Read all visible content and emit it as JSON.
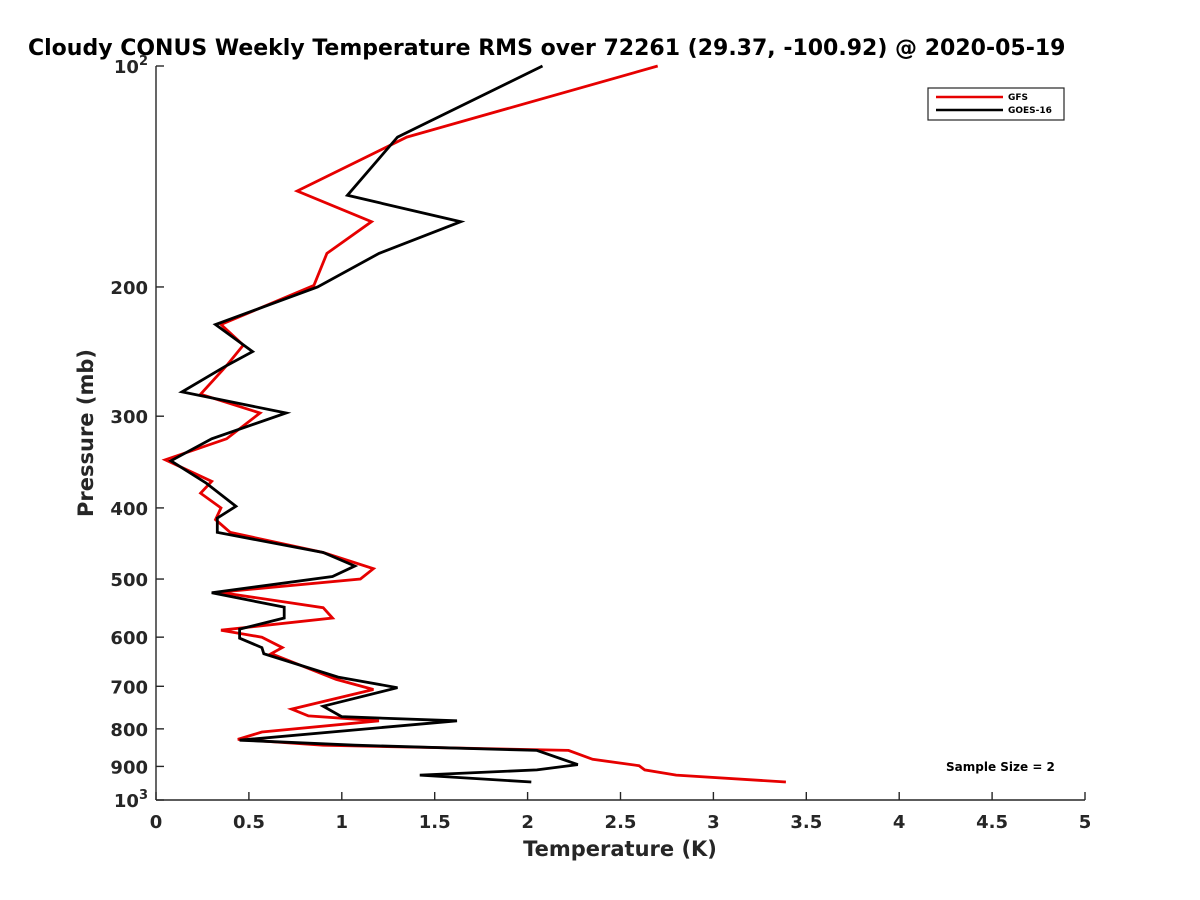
{
  "chart_data": {
    "type": "line",
    "title": "Cloudy CONUS Weekly Temperature RMS over 72261 (29.37, -100.92) @ 2020-05-19",
    "xlabel": "Temperature (K)",
    "ylabel": "Pressure (mb)",
    "xlim": [
      0,
      5
    ],
    "ylim": [
      100,
      1000
    ],
    "y_scale": "log",
    "y_reversed": true,
    "grid": false,
    "legend_position": "top-right",
    "x_ticks": [
      "0",
      "0.5",
      "1",
      "1.5",
      "2",
      "2.5",
      "3",
      "3.5",
      "4",
      "4.5",
      "5"
    ],
    "y_ticks": [
      {
        "value": 100,
        "base": "10",
        "exp": "2"
      },
      {
        "value": 200,
        "label": "200"
      },
      {
        "value": 300,
        "label": "300"
      },
      {
        "value": 400,
        "label": "400"
      },
      {
        "value": 500,
        "label": "500"
      },
      {
        "value": 600,
        "label": "600"
      },
      {
        "value": 700,
        "label": "700"
      },
      {
        "value": 800,
        "label": "800"
      },
      {
        "value": 900,
        "label": "900"
      },
      {
        "value": 1000,
        "base": "10",
        "exp": "3"
      }
    ],
    "annotation": "Sample Size = 2",
    "series": [
      {
        "name": "GFS",
        "color": "#e60000",
        "points": [
          [
            2.7,
            100
          ],
          [
            1.35,
            125
          ],
          [
            0.76,
            148
          ],
          [
            1.16,
            163
          ],
          [
            0.92,
            180
          ],
          [
            0.85,
            199
          ],
          [
            0.35,
            225
          ],
          [
            0.47,
            240
          ],
          [
            0.38,
            256
          ],
          [
            0.24,
            280
          ],
          [
            0.56,
            297
          ],
          [
            0.38,
            322
          ],
          [
            0.05,
            344
          ],
          [
            0.3,
            368
          ],
          [
            0.24,
            382
          ],
          [
            0.35,
            400
          ],
          [
            0.32,
            415
          ],
          [
            0.4,
            432
          ],
          [
            0.9,
            460
          ],
          [
            1.17,
            484
          ],
          [
            1.1,
            500
          ],
          [
            0.34,
            521
          ],
          [
            0.9,
            547
          ],
          [
            0.95,
            565
          ],
          [
            0.35,
            587
          ],
          [
            0.57,
            600
          ],
          [
            0.68,
            620
          ],
          [
            0.62,
            632
          ],
          [
            0.97,
            685
          ],
          [
            1.17,
            707
          ],
          [
            0.73,
            752
          ],
          [
            0.82,
            768
          ],
          [
            1.2,
            780
          ],
          [
            0.57,
            808
          ],
          [
            0.44,
            827
          ],
          [
            0.9,
            842
          ],
          [
            2.22,
            856
          ],
          [
            2.35,
            880
          ],
          [
            2.6,
            898
          ],
          [
            2.63,
            910
          ],
          [
            2.8,
            925
          ],
          [
            3.39,
            945
          ]
        ]
      },
      {
        "name": "GOES-16",
        "color": "#000000",
        "points": [
          [
            2.08,
            100
          ],
          [
            1.3,
            125
          ],
          [
            1.03,
            150
          ],
          [
            1.64,
            163
          ],
          [
            1.2,
            180
          ],
          [
            0.87,
            200
          ],
          [
            0.32,
            225
          ],
          [
            0.52,
            245
          ],
          [
            0.38,
            256
          ],
          [
            0.14,
            278
          ],
          [
            0.7,
            297
          ],
          [
            0.3,
            322
          ],
          [
            0.08,
            345
          ],
          [
            0.27,
            370
          ],
          [
            0.43,
            398
          ],
          [
            0.33,
            413
          ],
          [
            0.33,
            432
          ],
          [
            0.9,
            460
          ],
          [
            1.07,
            480
          ],
          [
            0.95,
            496
          ],
          [
            0.3,
            522
          ],
          [
            0.69,
            546
          ],
          [
            0.69,
            565
          ],
          [
            0.45,
            585
          ],
          [
            0.45,
            602
          ],
          [
            0.57,
            620
          ],
          [
            0.58,
            632
          ],
          [
            0.98,
            680
          ],
          [
            1.3,
            703
          ],
          [
            0.9,
            745
          ],
          [
            1.0,
            770
          ],
          [
            1.62,
            780
          ],
          [
            0.45,
            829
          ],
          [
            1.07,
            842
          ],
          [
            2.05,
            856
          ],
          [
            2.27,
            895
          ],
          [
            2.05,
            910
          ],
          [
            1.42,
            925
          ],
          [
            2.02,
            945
          ]
        ]
      }
    ]
  }
}
